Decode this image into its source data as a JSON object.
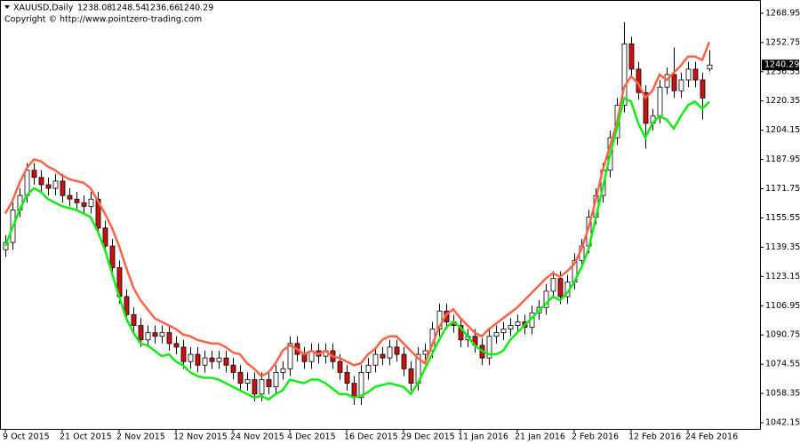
{
  "chart_data": {
    "type": "candlestick",
    "symbol": "XAUUSD,Daily",
    "copyright": "Copyright © http://www.pointzero-trading.com",
    "categories": [
      "9 Oct 2015",
      null,
      null,
      null,
      null,
      null,
      null,
      null,
      "21 Oct 2015",
      null,
      null,
      null,
      null,
      null,
      null,
      null,
      "2 Nov 2015",
      null,
      null,
      null,
      null,
      null,
      null,
      null,
      "12 Nov 2015",
      null,
      null,
      null,
      null,
      null,
      null,
      null,
      "24 Nov 2015",
      null,
      null,
      null,
      null,
      null,
      null,
      null,
      "4 Dec 2015",
      null,
      null,
      null,
      null,
      null,
      null,
      null,
      "16 Dec 2015",
      null,
      null,
      null,
      null,
      null,
      null,
      null,
      "29 Dec 2015",
      null,
      null,
      null,
      null,
      null,
      null,
      null,
      "11 Jan 2016",
      null,
      null,
      null,
      null,
      null,
      null,
      null,
      "21 Jan 2016",
      null,
      null,
      null,
      null,
      null,
      null,
      null,
      "2 Feb 2016",
      null,
      null,
      null,
      null,
      null,
      null,
      null,
      "12 Feb 2016",
      null,
      null,
      null,
      null,
      null,
      null,
      null,
      "24 Feb 2016",
      null,
      null,
      null
    ],
    "open": [
      1138,
      1142,
      1160,
      1168,
      1182,
      1178,
      1174,
      1172,
      1176,
      1168,
      1166,
      1164,
      1162,
      1166,
      1150,
      1140,
      1128,
      1112,
      1102,
      1096,
      1088,
      1092,
      1090,
      1092,
      1086,
      1084,
      1076,
      1080,
      1074,
      1078,
      1076,
      1078,
      1074,
      1070,
      1064,
      1066,
      1058,
      1066,
      1062,
      1070,
      1072,
      1086,
      1080,
      1076,
      1082,
      1079,
      1082,
      1076,
      1070,
      1064,
      1056,
      1070,
      1074,
      1080,
      1078,
      1084,
      1080,
      1072,
      1064,
      1080,
      1082,
      1094,
      1104,
      1098,
      1096,
      1088,
      1090,
      1085,
      1078,
      1090,
      1092,
      1094,
      1096,
      1098,
      1095,
      1103,
      1106,
      1115,
      1122,
      1112,
      1120,
      1132,
      1140,
      1156,
      1168,
      1182,
      1200,
      1218,
      1252,
      1238,
      1225,
      1208,
      1212,
      1228,
      1235,
      1226,
      1232,
      1238,
      1232,
      1238.08
    ],
    "high": [
      1146,
      1164,
      1172,
      1186,
      1186,
      1182,
      1178,
      1180,
      1180,
      1172,
      1170,
      1168,
      1170,
      1170,
      1154,
      1144,
      1132,
      1116,
      1106,
      1100,
      1096,
      1096,
      1096,
      1096,
      1090,
      1088,
      1084,
      1084,
      1082,
      1082,
      1082,
      1082,
      1078,
      1074,
      1070,
      1070,
      1070,
      1070,
      1074,
      1076,
      1090,
      1090,
      1084,
      1086,
      1086,
      1086,
      1086,
      1080,
      1074,
      1068,
      1074,
      1078,
      1084,
      1084,
      1088,
      1088,
      1084,
      1076,
      1084,
      1086,
      1098,
      1108,
      1108,
      1102,
      1100,
      1094,
      1094,
      1089,
      1094,
      1096,
      1098,
      1100,
      1102,
      1102,
      1107,
      1110,
      1119,
      1126,
      1126,
      1124,
      1136,
      1144,
      1160,
      1172,
      1186,
      1204,
      1222,
      1264,
      1256,
      1242,
      1229,
      1216,
      1232,
      1239,
      1250,
      1236,
      1242,
      1242,
      1236,
      1248.54
    ],
    "low": [
      1134,
      1138,
      1156,
      1164,
      1174,
      1170,
      1168,
      1168,
      1164,
      1162,
      1160,
      1158,
      1158,
      1146,
      1136,
      1124,
      1108,
      1098,
      1092,
      1084,
      1084,
      1086,
      1086,
      1082,
      1080,
      1072,
      1072,
      1070,
      1070,
      1072,
      1072,
      1070,
      1066,
      1060,
      1060,
      1054,
      1054,
      1058,
      1058,
      1066,
      1068,
      1076,
      1072,
      1072,
      1075,
      1075,
      1072,
      1066,
      1060,
      1052,
      1052,
      1066,
      1070,
      1074,
      1074,
      1076,
      1068,
      1060,
      1060,
      1076,
      1078,
      1090,
      1094,
      1092,
      1084,
      1084,
      1081,
      1074,
      1074,
      1086,
      1088,
      1090,
      1092,
      1091,
      1091,
      1099,
      1102,
      1111,
      1108,
      1108,
      1116,
      1128,
      1136,
      1152,
      1164,
      1178,
      1196,
      1214,
      1234,
      1221,
      1194,
      1204,
      1208,
      1224,
      1222,
      1222,
      1228,
      1228,
      1210,
      1236.66
    ],
    "close": [
      1142,
      1160,
      1168,
      1182,
      1178,
      1174,
      1172,
      1176,
      1168,
      1166,
      1164,
      1162,
      1166,
      1150,
      1140,
      1128,
      1112,
      1102,
      1096,
      1088,
      1092,
      1090,
      1092,
      1086,
      1084,
      1076,
      1080,
      1074,
      1078,
      1076,
      1078,
      1074,
      1070,
      1064,
      1066,
      1058,
      1066,
      1062,
      1070,
      1072,
      1086,
      1080,
      1076,
      1082,
      1079,
      1082,
      1076,
      1070,
      1064,
      1056,
      1070,
      1074,
      1080,
      1078,
      1084,
      1080,
      1072,
      1064,
      1080,
      1082,
      1094,
      1104,
      1098,
      1096,
      1088,
      1090,
      1085,
      1078,
      1090,
      1092,
      1094,
      1096,
      1098,
      1095,
      1103,
      1106,
      1115,
      1122,
      1112,
      1120,
      1132,
      1140,
      1156,
      1168,
      1182,
      1200,
      1218,
      1252,
      1238,
      1225,
      1208,
      1212,
      1228,
      1235,
      1226,
      1232,
      1238,
      1232,
      1222,
      1240.29
    ],
    "bull_color": "#ffffff",
    "bear_color": "#cc1111",
    "lines": [
      {
        "color": "#ff6347",
        "values": [
          1158,
          1165,
          1175,
          1183,
          1188,
          1187,
          1184,
          1182,
          1179,
          1177,
          1176,
          1175,
          1172,
          1165,
          1158,
          1150,
          1140,
          1128,
          1117,
          1110,
          1105,
          1100,
          1098,
          1096,
          1094,
          1091,
          1090,
          1088,
          1087,
          1086,
          1086,
          1084,
          1081,
          1080,
          1075,
          1072,
          1068,
          1070,
          1075,
          1082,
          1085,
          1083,
          1080,
          1082,
          1080,
          1082,
          1079,
          1078,
          1076,
          1074,
          1075,
          1080,
          1083,
          1088,
          1090,
          1090,
          1086,
          1082,
          1078,
          1075,
          1085,
          1095,
          1102,
          1105,
          1100,
          1096,
          1092,
          1090,
          1094,
          1097,
          1100,
          1103,
          1106,
          1110,
          1114,
          1118,
          1122,
          1125,
          1123,
          1126,
          1130,
          1138,
          1150,
          1165,
          1182,
          1195,
          1208,
          1228,
          1234,
          1230,
          1222,
          1226,
          1235,
          1232,
          1236,
          1240,
          1245,
          1245,
          1243,
          1253
        ]
      },
      {
        "color": "#11ee11",
        "values": [
          1140,
          1150,
          1160,
          1168,
          1172,
          1170,
          1166,
          1164,
          1162,
          1161,
          1160,
          1158,
          1156,
          1148,
          1138,
          1125,
          1112,
          1100,
          1092,
          1086,
          1085,
          1082,
          1079,
          1080,
          1076,
          1074,
          1070,
          1068,
          1067,
          1067,
          1066,
          1064,
          1062,
          1060,
          1058,
          1056,
          1057,
          1055,
          1058,
          1060,
          1066,
          1065,
          1064,
          1066,
          1066,
          1064,
          1061,
          1058,
          1058,
          1056,
          1057,
          1059,
          1062,
          1063,
          1064,
          1063,
          1062,
          1058,
          1064,
          1072,
          1080,
          1088,
          1095,
          1098,
          1095,
          1090,
          1085,
          1082,
          1080,
          1080,
          1082,
          1088,
          1092,
          1096,
          1100,
          1104,
          1108,
          1112,
          1110,
          1114,
          1120,
          1128,
          1138,
          1155,
          1172,
          1190,
          1205,
          1222,
          1220,
          1208,
          1200,
          1208,
          1212,
          1210,
          1205,
          1212,
          1218,
          1220,
          1216,
          1220
        ]
      }
    ],
    "ylim": [
      1038.7,
      1276.3
    ],
    "yticks": [
      1268.95,
      1252.75,
      1236.55,
      1220.35,
      1204.15,
      1187.95,
      1171.75,
      1155.55,
      1139.35,
      1123.15,
      1106.95,
      1090.75,
      1074.55,
      1058.35,
      1042.15
    ]
  }
}
